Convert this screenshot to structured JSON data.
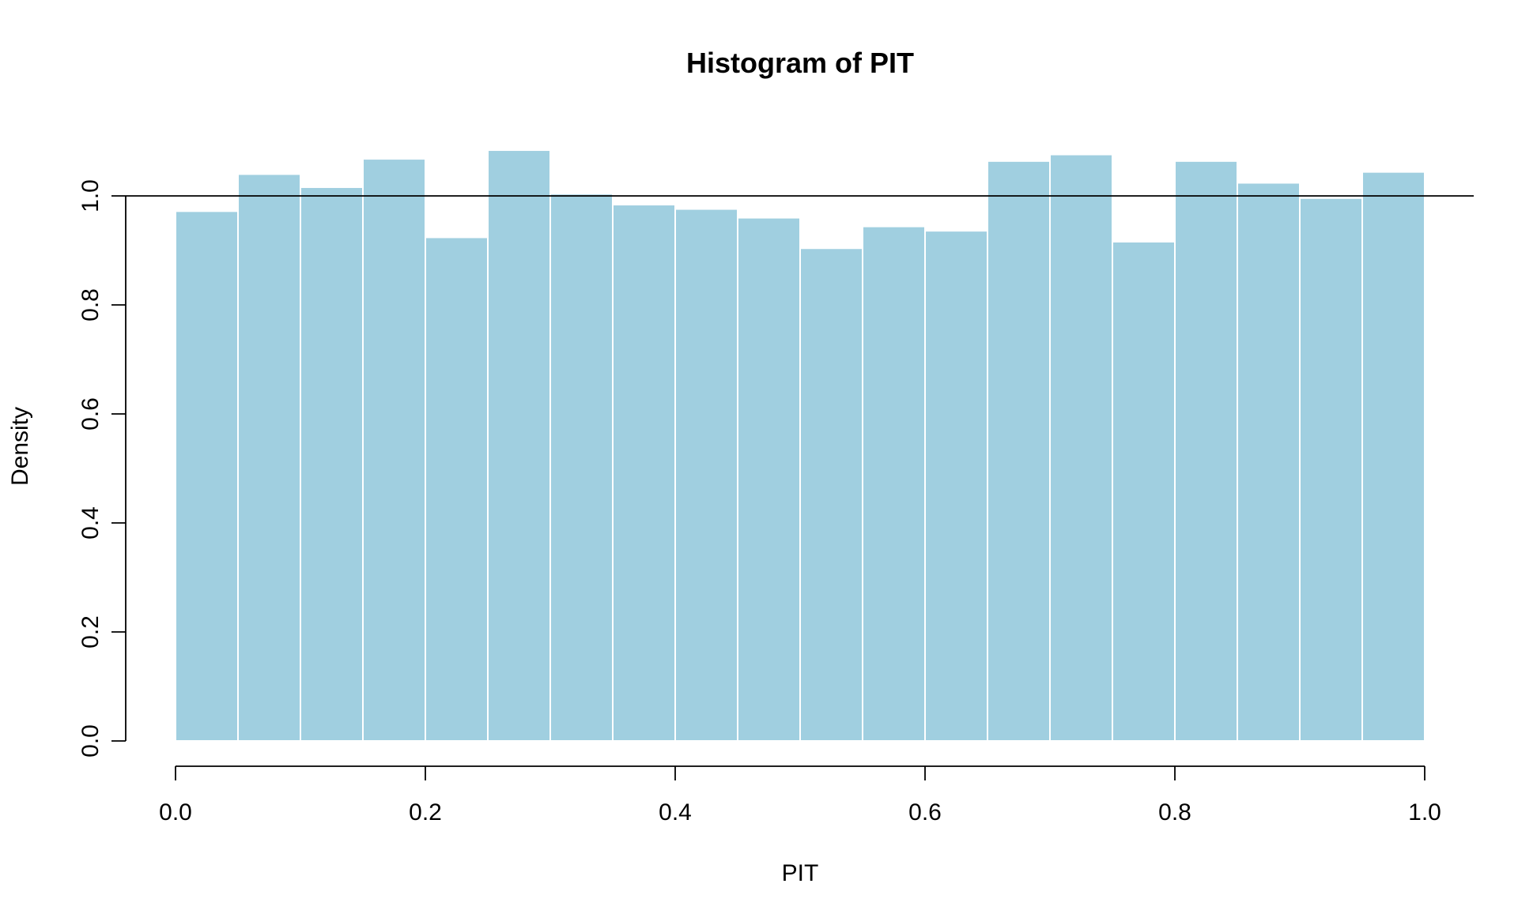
{
  "chart_data": {
    "type": "bar",
    "title": "Histogram of PIT",
    "xlabel": "PIT",
    "ylabel": "Density",
    "bin_edges": [
      0.0,
      0.05,
      0.1,
      0.15,
      0.2,
      0.25,
      0.3,
      0.35,
      0.4,
      0.45,
      0.5,
      0.55,
      0.6,
      0.65,
      0.7,
      0.75,
      0.8,
      0.85,
      0.9,
      0.95,
      1.0
    ],
    "values": [
      0.972,
      1.04,
      1.016,
      1.068,
      0.924,
      1.084,
      1.004,
      0.984,
      0.976,
      0.96,
      0.904,
      0.944,
      0.936,
      1.064,
      1.076,
      0.916,
      1.064,
      1.024,
      0.996,
      1.044
    ],
    "reference_line": 1.0,
    "xlim": [
      0.0,
      1.0
    ],
    "ylim": [
      0.0,
      1.0
    ],
    "x_ticks": [
      "0.0",
      "0.2",
      "0.4",
      "0.6",
      "0.8",
      "1.0"
    ],
    "y_ticks": [
      "0.0",
      "0.2",
      "0.4",
      "0.6",
      "0.8",
      "1.0"
    ],
    "grid": false,
    "bar_color": "#a0cfe0",
    "bar_edge_color": "#ffffff"
  }
}
